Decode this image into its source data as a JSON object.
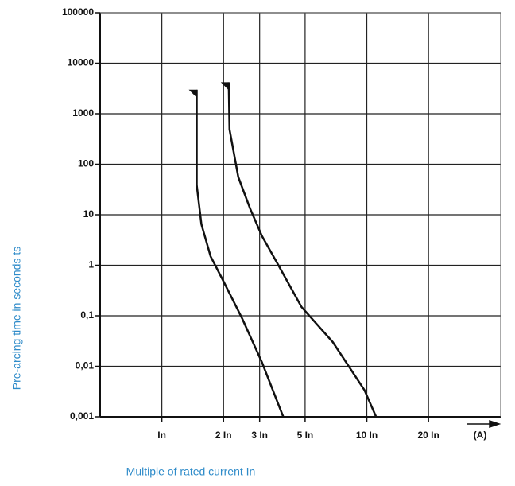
{
  "chart_data": {
    "type": "line",
    "x_label": "Multiple of rated current In",
    "y_label": "Pre-arcing time in seconds ts",
    "x_unit": "(A)",
    "log_x": true,
    "log_y": true,
    "grid": true,
    "xlim": [
      0.5,
      45
    ],
    "ylim": [
      0.001,
      100000
    ],
    "xticks": [
      {
        "value": 1,
        "label": "In"
      },
      {
        "value": 2,
        "label": "2 In"
      },
      {
        "value": 3,
        "label": "3 In"
      },
      {
        "value": 5,
        "label": "5 In"
      },
      {
        "value": 10,
        "label": "10 In"
      },
      {
        "value": 20,
        "label": "20 In"
      }
    ],
    "yticks": [
      100000,
      10000,
      1000,
      100,
      10,
      1,
      {
        "value": 0.1,
        "label": "0,1"
      },
      {
        "value": 0.01,
        "label": "0,01"
      },
      {
        "value": 0.001,
        "label": "0,001"
      }
    ],
    "series": [
      {
        "color": "#111111",
        "x": [
          1.48,
          1.48,
          1.56,
          1.73,
          1.98,
          2.47,
          3.08,
          3.91
        ],
        "values": [
          3000,
          39,
          6.5,
          1.5,
          0.52,
          0.087,
          0.012,
          0.001
        ]
      },
      {
        "color": "#111111",
        "x": [
          2.12,
          2.14,
          2.36,
          2.7,
          3.08,
          3.67,
          4.8,
          6.83,
          9.73,
          11.1
        ],
        "values": [
          4200,
          490,
          56,
          13,
          3.8,
          1.07,
          0.15,
          0.03,
          0.0034,
          0.001
        ]
      }
    ]
  }
}
